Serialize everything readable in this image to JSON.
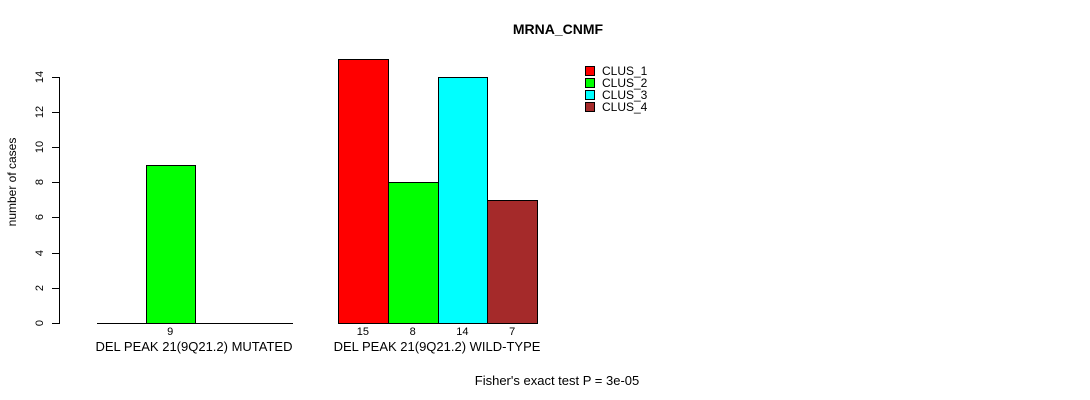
{
  "chart_data": {
    "type": "bar",
    "title": "MRNA_CNMF",
    "ylabel": "number of cases",
    "xlabel": "",
    "ylim": [
      0,
      15
    ],
    "yticks": [
      0,
      2,
      4,
      6,
      8,
      10,
      12,
      14
    ],
    "grid": false,
    "legend_position": "top-right",
    "series_names": [
      "CLUS_1",
      "CLUS_2",
      "CLUS_3",
      "CLUS_4"
    ],
    "series_colors": [
      "#ff0000",
      "#00ff00",
      "#00ffff",
      "#a52a2a"
    ],
    "groups": [
      {
        "label": "DEL PEAK 21(9Q21.2) MUTATED",
        "values": [
          0,
          9,
          0,
          0
        ]
      },
      {
        "label": "DEL PEAK 21(9Q21.2) WILD-TYPE",
        "values": [
          15,
          8,
          14,
          7
        ]
      }
    ],
    "bar_value_labels": [
      [
        "",
        "9",
        "",
        ""
      ],
      [
        "15",
        "8",
        "14",
        "7"
      ]
    ],
    "footnote": "Fisher's exact test P = 3e-05",
    "colors": {
      "background": "#ffffff",
      "axis": "#000000",
      "text": "#000000"
    }
  }
}
